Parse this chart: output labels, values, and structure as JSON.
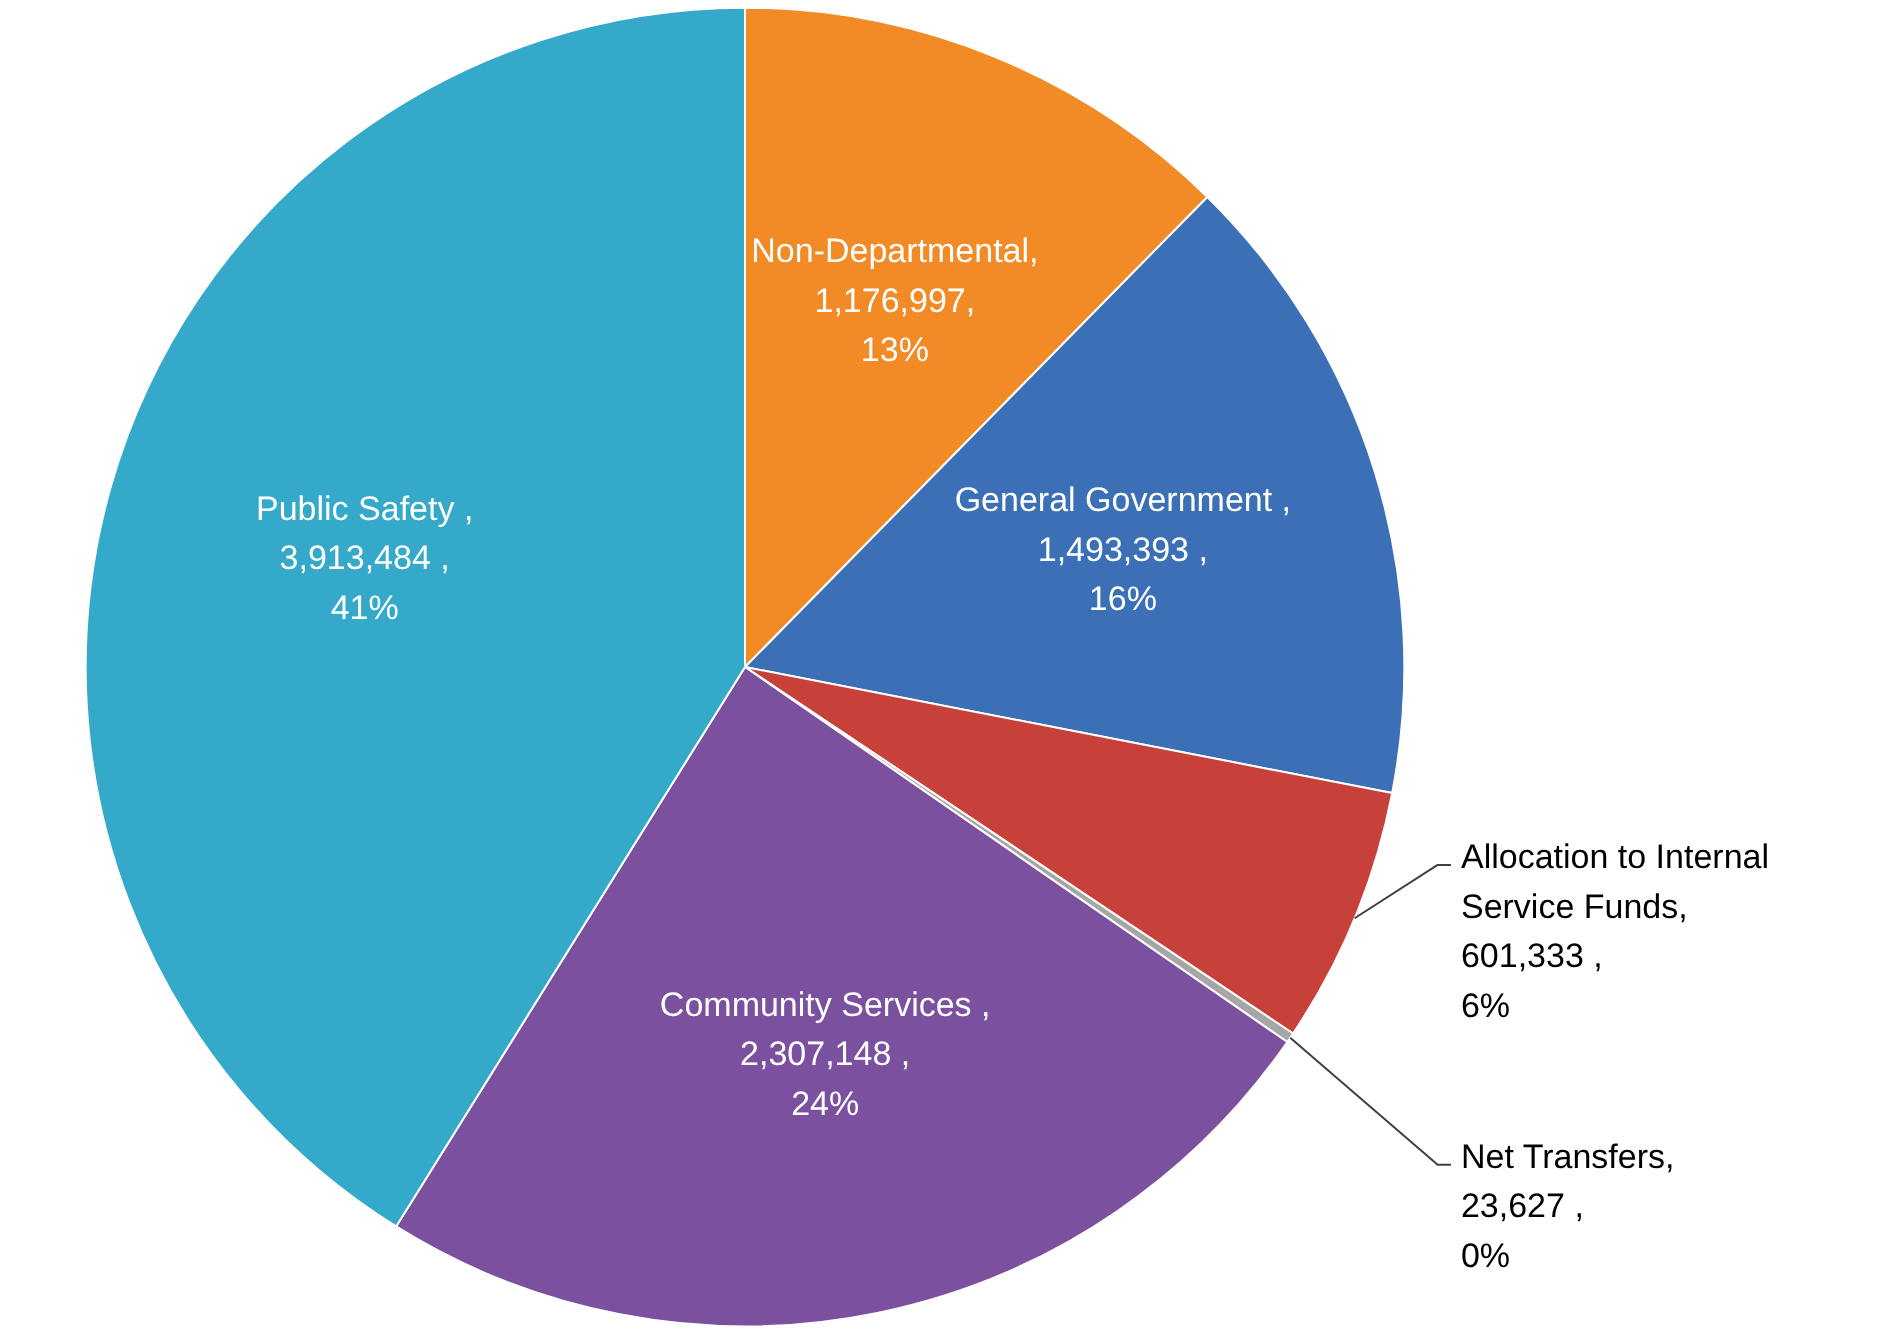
{
  "chart_data": {
    "type": "pie",
    "categories": [
      "Non-Departmental",
      "General Government",
      "Allocation to Internal Service Funds",
      "Net Transfers",
      "Community Services",
      "Public Safety"
    ],
    "values": [
      1176997,
      1493393,
      601333,
      23627,
      2307148,
      3913484
    ],
    "value_labels": [
      ",\n1,176,997,\n13%",
      " ,\n1,493,393 ,\n16%",
      ",\n601,333 ,\n6%",
      ",\n23,627 ,\n0%",
      " ,\n2,307,148 ,\n24%",
      " ,\n3,913,484 ,\n41%"
    ],
    "colors": [
      "#f28a25",
      "#3b6fb6",
      "#c8403a",
      "#a6a6a6",
      "#7b509f",
      "#34a9c9"
    ]
  }
}
